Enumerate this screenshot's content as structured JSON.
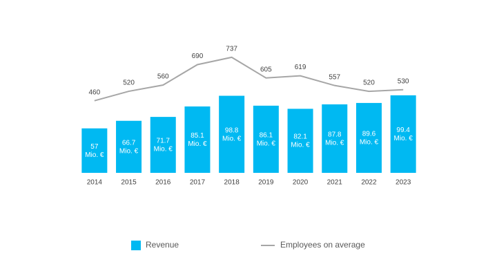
{
  "chart_data": {
    "type": "combo",
    "categories": [
      "2014",
      "2015",
      "2016",
      "2017",
      "2018",
      "2019",
      "2020",
      "2021",
      "2022",
      "2023"
    ],
    "series": [
      {
        "name": "Revenue",
        "type": "bar",
        "color": "#00b9f2",
        "values": [
          57,
          66.7,
          71.7,
          85.1,
          98.8,
          86.1,
          82.1,
          87.8,
          89.6,
          99.4
        ],
        "value_labels": [
          [
            "57",
            "Mio. €"
          ],
          [
            "66.7",
            "Mio. €"
          ],
          [
            "71.7",
            "Mio. €"
          ],
          [
            "85.1",
            "Mio. €"
          ],
          [
            "98.8",
            "Mio. €"
          ],
          [
            "86.1",
            "Mio. €"
          ],
          [
            "82.1",
            "Mio. €"
          ],
          [
            "87.8",
            "Mio. €"
          ],
          [
            "89.6",
            "Mio. €"
          ],
          [
            "99.4",
            "Mio. €"
          ]
        ]
      },
      {
        "name": "Employees on average",
        "type": "line",
        "axis": "y2",
        "color": "#a6a6a6",
        "values": [
          460,
          520,
          560,
          690,
          737,
          605,
          619,
          557,
          520,
          530
        ]
      }
    ],
    "ylim": [
      0,
      195
    ],
    "y2lim": [
      0,
      970
    ],
    "legend": "bottom"
  }
}
